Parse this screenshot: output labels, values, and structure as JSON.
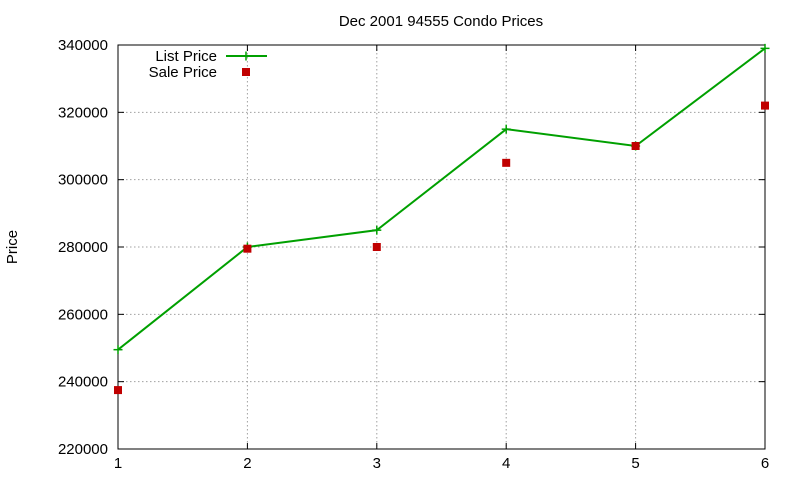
{
  "chart_data": {
    "type": "line",
    "title": "Dec 2001 94555 Condo Prices",
    "xlabel": "",
    "ylabel": "Price",
    "x": [
      1,
      2,
      3,
      4,
      5,
      6
    ],
    "xlim": [
      1,
      6
    ],
    "ylim": [
      220000,
      340000
    ],
    "xticks": [
      "1",
      "2",
      "3",
      "4",
      "5",
      "6"
    ],
    "yticks": [
      "220000",
      "240000",
      "260000",
      "280000",
      "300000",
      "320000",
      "340000"
    ],
    "grid": true,
    "legend_position": "top-left",
    "series": [
      {
        "name": "List Price",
        "style": "linespoints",
        "marker": "plus",
        "color": "#00a000",
        "values": [
          249500,
          280000,
          285000,
          315000,
          310000,
          339000
        ]
      },
      {
        "name": "Sale Price",
        "style": "points",
        "marker": "square",
        "color": "#c00000",
        "values": [
          237500,
          279500,
          280000,
          305000,
          310000,
          322000
        ]
      }
    ]
  }
}
